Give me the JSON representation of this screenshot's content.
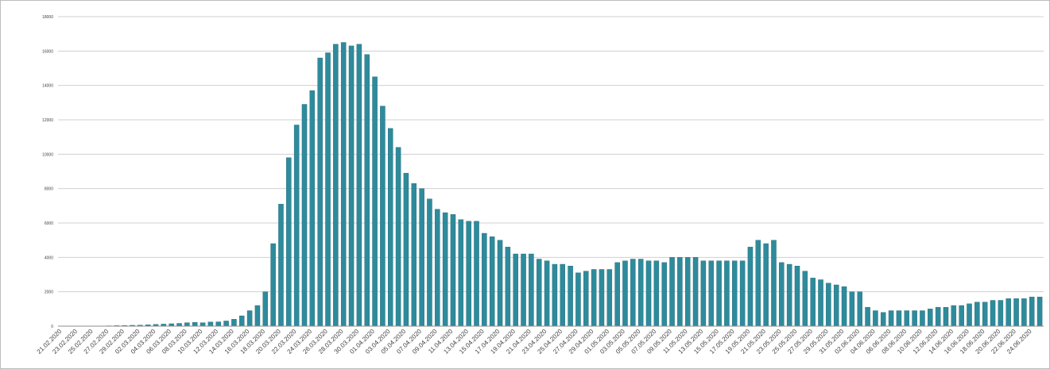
{
  "chart_data": {
    "type": "bar",
    "title": "",
    "xlabel": "",
    "ylabel": "",
    "ylim": [
      0,
      18000
    ],
    "yticks": [
      0,
      2000,
      4000,
      6000,
      8000,
      10000,
      12000,
      14000,
      16000,
      18000
    ],
    "ytick_labels": [
      "0",
      "2000",
      "4000",
      "6000",
      "8000",
      "10000",
      "12000",
      "14000",
      "16000",
      "18000"
    ],
    "grid": true,
    "legend": "none",
    "bar_color": "#2e8b9c",
    "bar_edge_color": "#1f6675",
    "start_date": "21.02.2020",
    "label_every": 2,
    "values": [
      0,
      0,
      0,
      0,
      0,
      0,
      20,
      30,
      40,
      50,
      60,
      80,
      100,
      120,
      140,
      160,
      200,
      220,
      200,
      240,
      250,
      300,
      400,
      600,
      900,
      1200,
      2000,
      4800,
      7100,
      9800,
      11700,
      12900,
      13700,
      15600,
      15900,
      16400,
      16500,
      16300,
      16400,
      15800,
      14500,
      12800,
      11500,
      10400,
      8900,
      8300,
      8000,
      7400,
      6800,
      6600,
      6500,
      6200,
      6100,
      6100,
      5400,
      5200,
      5000,
      4600,
      4200,
      4200,
      4200,
      3900,
      3800,
      3600,
      3600,
      3500,
      3100,
      3200,
      3300,
      3300,
      3300,
      3700,
      3800,
      3900,
      3900,
      3800,
      3800,
      3700,
      4000,
      4000,
      4000,
      4000,
      3800,
      3800,
      3800,
      3800,
      3800,
      3800,
      4600,
      5000,
      4800,
      5000,
      3700,
      3600,
      3500,
      3200,
      2800,
      2700,
      2500,
      2400,
      2300,
      2000,
      2000,
      1100,
      900,
      800,
      900,
      900,
      900,
      900,
      900,
      1000,
      1100,
      1100,
      1200,
      1200,
      1300,
      1400,
      1400,
      1500,
      1500,
      1600,
      1600,
      1600,
      1700,
      1700
    ]
  }
}
